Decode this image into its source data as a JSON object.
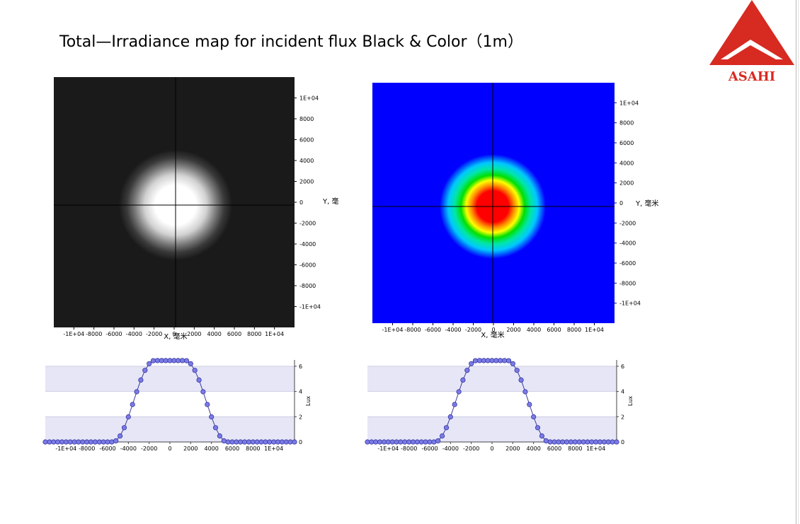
{
  "slide": {
    "title": "Total—Irradiance map for incident flux Black & Color（1m）"
  },
  "logo": {
    "text": "ASAHI",
    "color": "#d72a21"
  },
  "chart_data": [
    {
      "type": "heatmap",
      "colormap": "grayscale",
      "background": "#1a1a1a",
      "xlabel": "X, 毫米",
      "ylabel": "Y, 毫",
      "xlim": [
        -12000,
        12000
      ],
      "ylim": [
        -12000,
        12000
      ],
      "x_ticks": [
        "-1E+04",
        "-8000",
        "-6000",
        "-4000",
        "-2000",
        "0",
        "2000",
        "4000",
        "6000",
        "8000",
        "1E+04"
      ],
      "y_ticks": [
        "1E+04",
        "8000",
        "6000",
        "4000",
        "2000",
        "0",
        "-2000",
        "-4000",
        "-6000",
        "-8000",
        "-1E+04"
      ],
      "spot": {
        "center": [
          0,
          0
        ],
        "plateau_radius": 2000,
        "outer_radius": 5000
      }
    },
    {
      "type": "heatmap",
      "colormap": "jet",
      "background": "#0000ff",
      "xlabel": "X, 毫米",
      "ylabel": "Y, 毫米",
      "xlim": [
        -12000,
        12000
      ],
      "ylim": [
        -12000,
        12000
      ],
      "x_ticks": [
        "-1E+04",
        "-8000",
        "-6000",
        "-4000",
        "-2000",
        "0",
        "2000",
        "4000",
        "6000",
        "8000",
        "1E+04"
      ],
      "y_ticks": [
        "1E+04",
        "8000",
        "6000",
        "4000",
        "2000",
        "0",
        "-2000",
        "-4000",
        "-6000",
        "-8000",
        "-1E+04"
      ],
      "spot": {
        "center": [
          0,
          0
        ],
        "plateau_radius": 2000,
        "outer_radius": 5000
      }
    },
    {
      "type": "line",
      "xlabel": "",
      "ylabel": "Lux",
      "xlim": [
        -12000,
        12000
      ],
      "ylim": [
        0,
        6.5
      ],
      "x_ticks": [
        "-1E+04",
        "-8000",
        "-6000",
        "-4000",
        "-2000",
        "0",
        "2000",
        "4000",
        "6000",
        "8000",
        "1E+04"
      ],
      "y_ticks": [
        "0",
        "2",
        "4",
        "6"
      ],
      "profile": {
        "plateau": 6.45,
        "flat_half_width": 1500,
        "zero_half_width": 5500,
        "x_step": 400
      }
    },
    {
      "type": "line",
      "xlabel": "",
      "ylabel": "Lux",
      "xlim": [
        -12000,
        12000
      ],
      "ylim": [
        0,
        6.5
      ],
      "x_ticks": [
        "-1E+04",
        "-8000",
        "-6000",
        "-4000",
        "-2000",
        "0",
        "2000",
        "4000",
        "6000",
        "8000",
        "1E+04"
      ],
      "y_ticks": [
        "0",
        "2",
        "4",
        "6"
      ],
      "profile": {
        "plateau": 6.45,
        "flat_half_width": 1500,
        "zero_half_width": 5500,
        "x_step": 400
      }
    }
  ]
}
